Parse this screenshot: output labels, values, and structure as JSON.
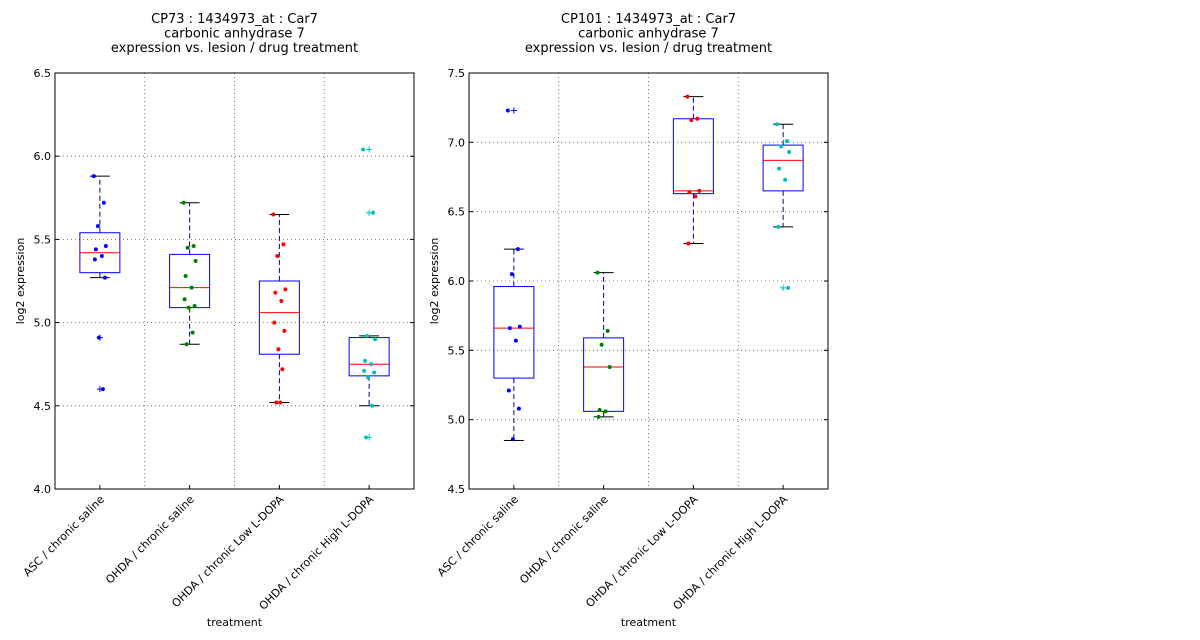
{
  "chart_data": [
    {
      "type": "box",
      "title_lines": [
        "CP73 : 1434973_at : Car7",
        "carbonic anhydrase 7",
        "expression vs. lesion / drug treatment"
      ],
      "xlabel": "treatment",
      "ylabel": "log2 expression",
      "ylim": [
        4.0,
        6.5
      ],
      "yticks": [
        "4.0",
        "4.5",
        "5.0",
        "5.5",
        "6.0",
        "6.5"
      ],
      "grid": true,
      "categories": [
        "ASC / chronic saline",
        "OHDA / chronic saline",
        "OHDA / chronic Low L-DOPA",
        "OHDA / chronic High L-DOPA"
      ],
      "boxes": [
        {
          "q1": 5.3,
          "median": 5.42,
          "q3": 5.54,
          "whisker_low": 5.27,
          "whisker_high": 5.88,
          "color": "#0000ff",
          "points": [
            5.88,
            5.72,
            5.58,
            5.46,
            5.44,
            5.4,
            5.38,
            5.27,
            4.91,
            4.6
          ],
          "fliers": [
            4.91,
            4.6
          ]
        },
        {
          "q1": 5.09,
          "median": 5.21,
          "q3": 5.41,
          "whisker_low": 4.87,
          "whisker_high": 5.72,
          "color": "#008000",
          "points": [
            5.72,
            5.46,
            5.45,
            5.37,
            5.28,
            5.21,
            5.14,
            5.1,
            5.09,
            4.94,
            4.87
          ],
          "fliers": []
        },
        {
          "q1": 4.81,
          "median": 5.06,
          "q3": 5.25,
          "whisker_low": 4.52,
          "whisker_high": 5.65,
          "color": "#ff0000",
          "points": [
            5.65,
            5.47,
            5.4,
            5.2,
            5.18,
            5.13,
            5.0,
            4.95,
            4.84,
            4.72,
            4.52,
            4.52
          ],
          "fliers": []
        },
        {
          "q1": 4.68,
          "median": 4.75,
          "q3": 4.91,
          "whisker_low": 4.5,
          "whisker_high": 4.92,
          "color": "#00bfbf",
          "points": [
            6.04,
            5.66,
            4.92,
            4.9,
            4.77,
            4.75,
            4.71,
            4.7,
            4.67,
            4.5,
            4.31
          ],
          "fliers": [
            6.04,
            5.66,
            4.31
          ]
        }
      ]
    },
    {
      "type": "box",
      "title_lines": [
        "CP101 : 1434973_at : Car7",
        "carbonic anhydrase 7",
        "expression vs. lesion / drug treatment"
      ],
      "xlabel": "treatment",
      "ylabel": "log2 expression",
      "ylim": [
        4.5,
        7.5
      ],
      "yticks": [
        "4.5",
        "5.0",
        "5.5",
        "6.0",
        "6.5",
        "7.0",
        "7.5"
      ],
      "grid": true,
      "categories": [
        "ASC / chronic saline",
        "OHDA / chronic saline",
        "OHDA / chronic Low L-DOPA",
        "OHDA / chronic High L-DOPA"
      ],
      "boxes": [
        {
          "q1": 5.3,
          "median": 5.66,
          "q3": 5.96,
          "whisker_low": 4.85,
          "whisker_high": 6.23,
          "color": "#0000ff",
          "points": [
            7.23,
            6.23,
            6.05,
            5.67,
            5.66,
            5.57,
            5.21,
            5.08,
            4.86
          ],
          "fliers": [
            7.23
          ]
        },
        {
          "q1": 5.06,
          "median": 5.38,
          "q3": 5.59,
          "whisker_low": 5.02,
          "whisker_high": 6.06,
          "color": "#008000",
          "points": [
            6.06,
            5.64,
            5.54,
            5.38,
            5.07,
            5.06,
            5.02
          ],
          "fliers": []
        },
        {
          "q1": 6.63,
          "median": 6.65,
          "q3": 7.17,
          "whisker_low": 6.27,
          "whisker_high": 7.33,
          "color": "#ff0000",
          "points": [
            7.33,
            7.17,
            7.16,
            6.65,
            6.64,
            6.61,
            6.27
          ],
          "fliers": []
        },
        {
          "q1": 6.65,
          "median": 6.87,
          "q3": 6.98,
          "whisker_low": 6.39,
          "whisker_high": 7.13,
          "color": "#00bfbf",
          "points": [
            7.13,
            7.01,
            6.97,
            6.93,
            6.81,
            6.73,
            6.39,
            5.95
          ],
          "fliers": [
            5.95
          ]
        }
      ]
    }
  ]
}
